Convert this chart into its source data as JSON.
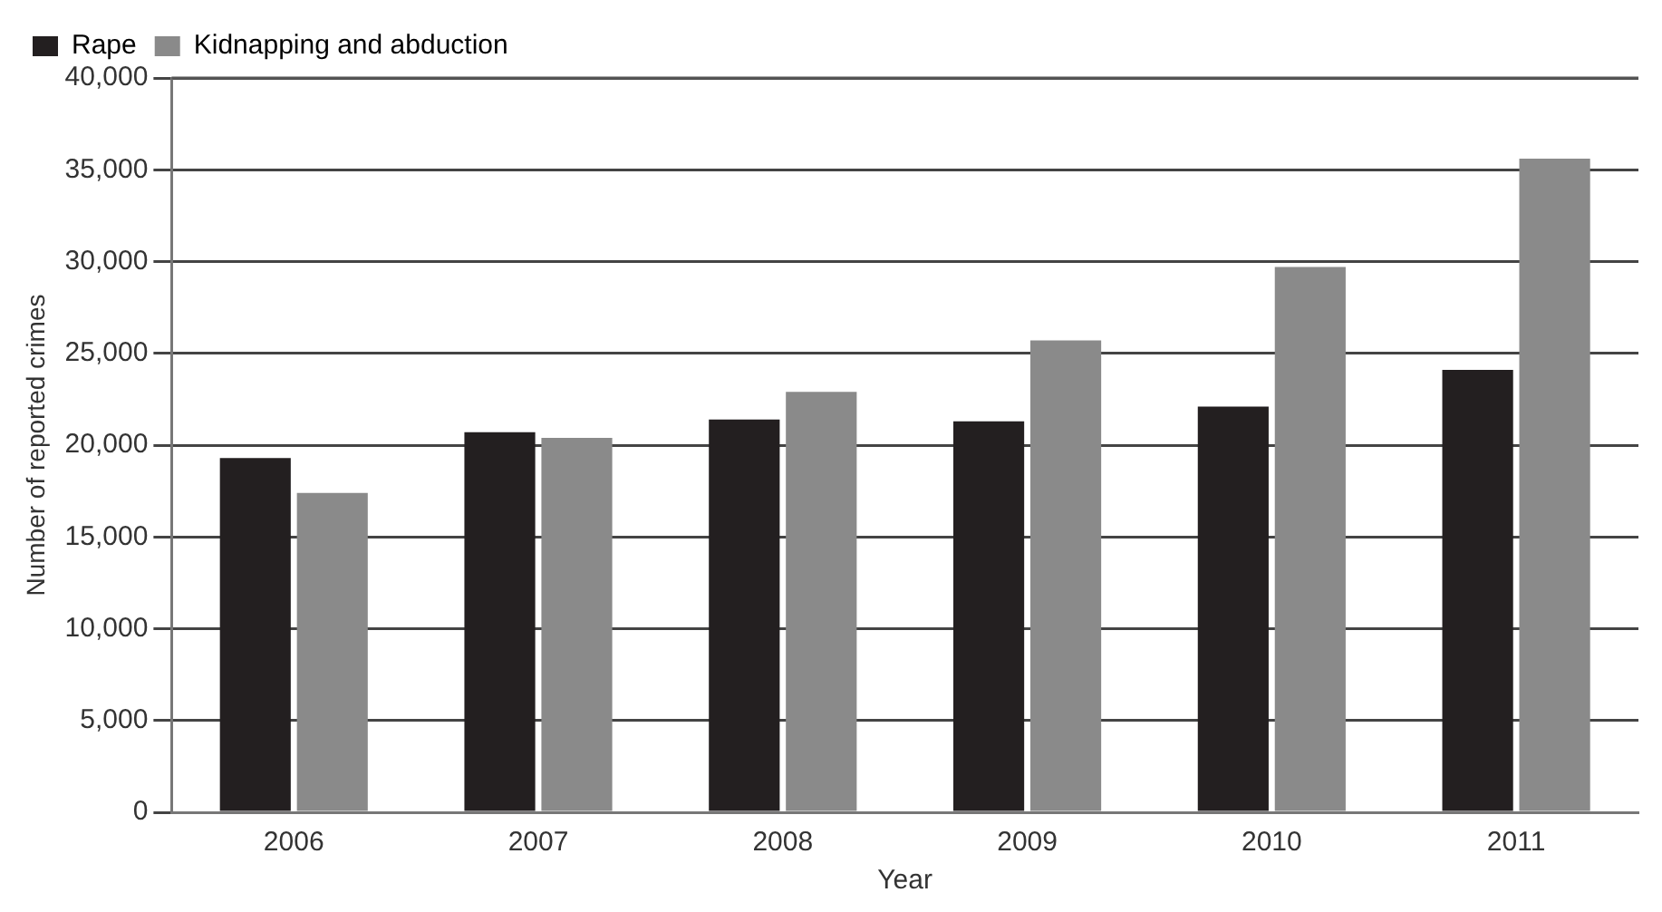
{
  "chart_data": {
    "type": "bar",
    "xlabel": "Year",
    "ylabel": "Number of reported crimes",
    "categories": [
      "2006",
      "2007",
      "2008",
      "2009",
      "2010",
      "2011"
    ],
    "series": [
      {
        "name": "Rape",
        "color": "#231f20",
        "values": [
          19300,
          20700,
          21400,
          21300,
          22100,
          24100
        ]
      },
      {
        "name": "Kidnapping and abduction",
        "color": "#8a8a8a",
        "values": [
          17400,
          20400,
          22900,
          25700,
          29700,
          35600
        ]
      }
    ],
    "ylim": [
      0,
      40000
    ],
    "yticks": [
      {
        "value": 0,
        "label": "0"
      },
      {
        "value": 5000,
        "label": "5,000"
      },
      {
        "value": 10000,
        "label": "10,000"
      },
      {
        "value": 15000,
        "label": "15,000"
      },
      {
        "value": 20000,
        "label": "20,000"
      },
      {
        "value": 25000,
        "label": "25,000"
      },
      {
        "value": 30000,
        "label": "30,000"
      },
      {
        "value": 35000,
        "label": "35,000"
      },
      {
        "value": 40000,
        "label": "40,000"
      }
    ],
    "grid": "y",
    "legend": "top left"
  }
}
